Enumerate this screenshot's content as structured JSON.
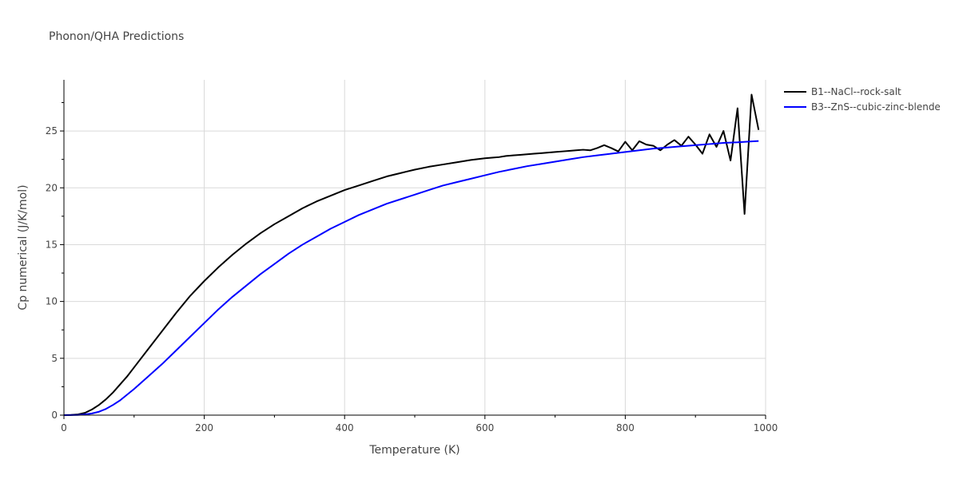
{
  "chart_data": {
    "type": "line",
    "title": "Phonon/QHA Predictions",
    "xlabel": "Temperature (K)",
    "ylabel": "Cp numerical (J/K/mol)",
    "xlim": [
      0,
      1000
    ],
    "ylim": [
      0,
      29.5
    ],
    "x_ticks": [
      0,
      200,
      400,
      600,
      800,
      1000
    ],
    "y_ticks": [
      0,
      5,
      10,
      15,
      20,
      25
    ],
    "grid": true,
    "legend": "right",
    "series": [
      {
        "name": "B1--NaCl--rock-salt",
        "color": "#000000",
        "x": [
          0,
          10,
          20,
          30,
          40,
          50,
          60,
          70,
          80,
          90,
          100,
          120,
          140,
          160,
          180,
          200,
          220,
          240,
          260,
          280,
          300,
          320,
          340,
          360,
          380,
          400,
          420,
          440,
          460,
          480,
          500,
          520,
          540,
          560,
          580,
          600,
          610,
          620,
          630,
          640,
          650,
          660,
          670,
          680,
          690,
          700,
          710,
          720,
          730,
          740,
          750,
          760,
          770,
          780,
          790,
          800,
          810,
          820,
          830,
          840,
          850,
          860,
          870,
          880,
          890,
          900,
          910,
          920,
          930,
          940,
          950,
          960,
          970,
          980,
          990
        ],
        "values": [
          0,
          0.02,
          0.06,
          0.2,
          0.5,
          0.9,
          1.4,
          2.0,
          2.7,
          3.4,
          4.2,
          5.8,
          7.4,
          9.0,
          10.5,
          11.8,
          13.0,
          14.1,
          15.1,
          16.0,
          16.8,
          17.5,
          18.2,
          18.8,
          19.3,
          19.8,
          20.2,
          20.6,
          21.0,
          21.3,
          21.6,
          21.85,
          22.05,
          22.25,
          22.45,
          22.6,
          22.65,
          22.7,
          22.8,
          22.85,
          22.9,
          22.95,
          23.0,
          23.05,
          23.1,
          23.15,
          23.2,
          23.25,
          23.3,
          23.35,
          23.3,
          23.5,
          23.75,
          23.5,
          23.2,
          24.05,
          23.3,
          24.1,
          23.8,
          23.7,
          23.3,
          23.8,
          24.2,
          23.7,
          24.5,
          23.8,
          23.0,
          24.7,
          23.6,
          25.0,
          22.4,
          27.0,
          17.7,
          28.2,
          25.1
        ]
      },
      {
        "name": "B3--ZnS--cubic-zinc-blende",
        "color": "#0000ff",
        "x": [
          0,
          10,
          20,
          30,
          40,
          50,
          60,
          70,
          80,
          90,
          100,
          120,
          140,
          160,
          180,
          200,
          220,
          240,
          260,
          280,
          300,
          320,
          340,
          360,
          380,
          400,
          420,
          440,
          460,
          480,
          500,
          520,
          540,
          560,
          580,
          600,
          620,
          640,
          660,
          680,
          700,
          720,
          740,
          760,
          780,
          800,
          820,
          840,
          860,
          880,
          900,
          920,
          940,
          960,
          980,
          990
        ],
        "values": [
          0,
          0.005,
          0.02,
          0.06,
          0.15,
          0.3,
          0.55,
          0.9,
          1.3,
          1.8,
          2.3,
          3.4,
          4.5,
          5.7,
          6.9,
          8.1,
          9.3,
          10.4,
          11.4,
          12.4,
          13.3,
          14.2,
          15.0,
          15.7,
          16.4,
          17.0,
          17.6,
          18.1,
          18.6,
          19.0,
          19.4,
          19.8,
          20.2,
          20.5,
          20.8,
          21.1,
          21.4,
          21.65,
          21.9,
          22.1,
          22.3,
          22.5,
          22.7,
          22.85,
          23.0,
          23.15,
          23.3,
          23.45,
          23.55,
          23.65,
          23.75,
          23.85,
          23.95,
          24.0,
          24.08,
          24.12
        ]
      }
    ]
  }
}
